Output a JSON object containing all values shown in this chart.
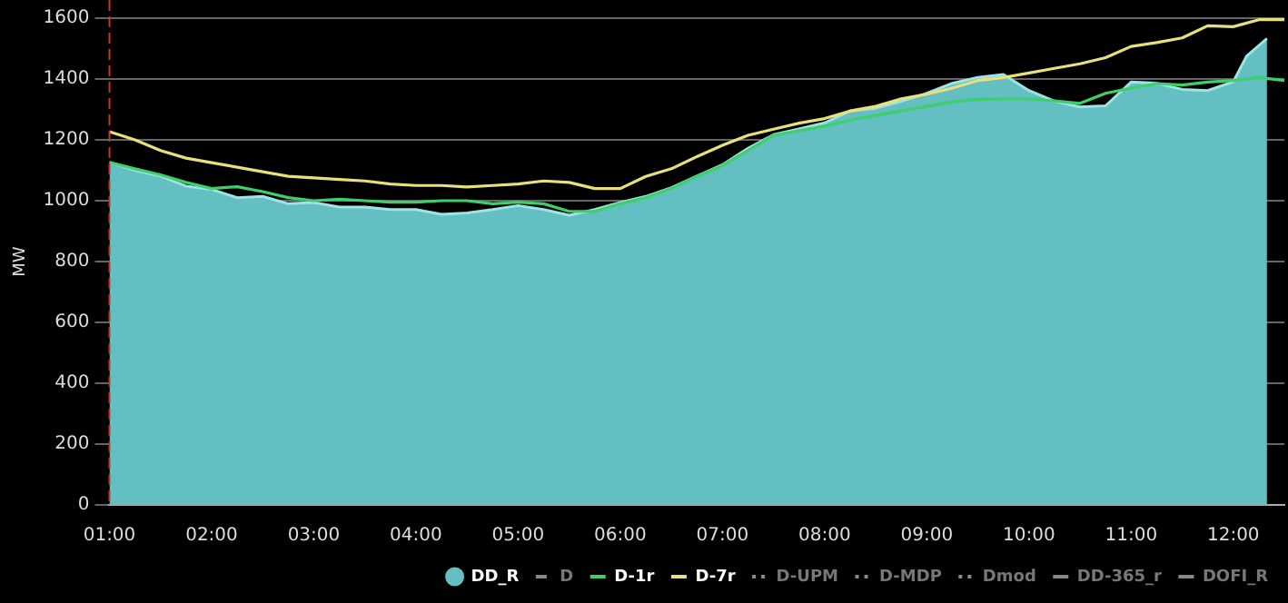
{
  "chart_data": {
    "type": "line",
    "ylabel": "MW",
    "x": [
      1,
      1.25,
      1.5,
      1.75,
      2,
      2.25,
      2.5,
      2.75,
      3,
      3.25,
      3.5,
      3.75,
      4,
      4.25,
      4.5,
      4.75,
      5,
      5.25,
      5.5,
      5.75,
      6,
      6.25,
      6.5,
      6.75,
      7,
      7.25,
      7.5,
      7.75,
      8,
      8.25,
      8.5,
      8.75,
      9,
      9.25,
      9.5,
      9.75,
      10,
      10.25,
      10.5,
      10.75,
      11,
      11.25,
      11.5,
      11.75,
      12,
      12.25,
      12.5
    ],
    "series": [
      {
        "name": "DD_R",
        "type": "area",
        "color": "#63bfc1",
        "x": [
          1,
          1.25,
          1.5,
          1.75,
          2,
          2.25,
          2.5,
          2.75,
          3,
          3.25,
          3.5,
          3.75,
          4,
          4.25,
          4.5,
          4.75,
          5,
          5.25,
          5.5,
          5.75,
          6,
          6.25,
          6.5,
          6.75,
          7,
          7.25,
          7.5,
          7.75,
          8,
          8.25,
          8.5,
          8.75,
          9,
          9.25,
          9.5,
          9.75,
          10,
          10.25,
          10.5,
          10.75,
          11,
          11.25,
          11.5,
          11.75,
          12,
          12.13,
          12.33
        ],
        "values": [
          1126,
          1100,
          1081,
          1048,
          1037,
          1010,
          1014,
          990,
          994,
          979,
          979,
          971,
          971,
          955,
          960,
          971,
          984,
          971,
          952,
          971,
          994,
          1014,
          1043,
          1081,
          1118,
          1172,
          1217,
          1236,
          1256,
          1295,
          1304,
          1327,
          1353,
          1386,
          1405,
          1415,
          1362,
          1327,
          1308,
          1312,
          1390,
          1386,
          1366,
          1362,
          1391,
          1475,
          1533
        ]
      },
      {
        "name": "D",
        "color": "#8a8a8a",
        "line_style": "dashed",
        "values": [
          null,
          null,
          null,
          null,
          null,
          null,
          null,
          null,
          null,
          null,
          null,
          null,
          null,
          null,
          null,
          null,
          null,
          null,
          null,
          null,
          null,
          null,
          null,
          null,
          null,
          null,
          null,
          null,
          null,
          null,
          null,
          null,
          null,
          null,
          null,
          null,
          null,
          null,
          null,
          null,
          null,
          null,
          null,
          null,
          null,
          null,
          null
        ]
      },
      {
        "name": "D-1r",
        "color": "#3ecf6a",
        "values": [
          1126,
          1105,
          1085,
          1060,
          1040,
          1046,
          1030,
          1010,
          1000,
          1005,
          1000,
          995,
          995,
          1000,
          1000,
          990,
          995,
          990,
          965,
          965,
          990,
          1010,
          1040,
          1080,
          1115,
          1165,
          1215,
          1230,
          1245,
          1265,
          1280,
          1295,
          1310,
          1325,
          1333,
          1335,
          1335,
          1328,
          1320,
          1353,
          1370,
          1385,
          1380,
          1390,
          1395,
          1405,
          1395
        ]
      },
      {
        "name": "D-7r",
        "color": "#e8e07a",
        "values": [
          1227,
          1200,
          1165,
          1140,
          1125,
          1110,
          1095,
          1080,
          1075,
          1070,
          1065,
          1055,
          1050,
          1050,
          1045,
          1050,
          1055,
          1065,
          1060,
          1040,
          1040,
          1080,
          1105,
          1145,
          1182,
          1215,
          1235,
          1255,
          1270,
          1295,
          1310,
          1335,
          1350,
          1370,
          1395,
          1405,
          1420,
          1435,
          1450,
          1470,
          1507,
          1520,
          1535,
          1575,
          1572,
          1595,
          1595
        ]
      },
      {
        "name": "D-UPM",
        "color": "#8a8a8a",
        "line_style": "dotted",
        "values": [
          null,
          null,
          null,
          null,
          null,
          null,
          null,
          null,
          null,
          null,
          null,
          null,
          null,
          null,
          null,
          null,
          null,
          null,
          null,
          null,
          null,
          null,
          null,
          null,
          null,
          null,
          null,
          null,
          null,
          null,
          null,
          null,
          null,
          null,
          null,
          null,
          null,
          null,
          null,
          null,
          null,
          null,
          null,
          null,
          null,
          null,
          null
        ]
      },
      {
        "name": "D-MDP",
        "color": "#8a8a8a",
        "line_style": "dotted",
        "values": [
          null,
          null,
          null,
          null,
          null,
          null,
          null,
          null,
          null,
          null,
          null,
          null,
          null,
          null,
          null,
          null,
          null,
          null,
          null,
          null,
          null,
          null,
          null,
          null,
          null,
          null,
          null,
          null,
          null,
          null,
          null,
          null,
          null,
          null,
          null,
          null,
          null,
          null,
          null,
          null,
          null,
          null,
          null,
          null,
          null,
          null,
          null
        ]
      },
      {
        "name": "Dmod",
        "color": "#8a8a8a",
        "line_style": "dotted",
        "values": [
          null,
          null,
          null,
          null,
          null,
          null,
          null,
          null,
          null,
          null,
          null,
          null,
          null,
          null,
          null,
          null,
          null,
          null,
          null,
          null,
          null,
          null,
          null,
          null,
          null,
          null,
          null,
          null,
          null,
          null,
          null,
          null,
          null,
          null,
          null,
          null,
          null,
          null,
          null,
          null,
          null,
          null,
          null,
          null,
          null,
          null,
          null
        ]
      },
      {
        "name": "DD-365_r",
        "color": "#8a8a8a",
        "line_style": "solid",
        "values": [
          null,
          null,
          null,
          null,
          null,
          null,
          null,
          null,
          null,
          null,
          null,
          null,
          null,
          null,
          null,
          null,
          null,
          null,
          null,
          null,
          null,
          null,
          null,
          null,
          null,
          null,
          null,
          null,
          null,
          null,
          null,
          null,
          null,
          null,
          null,
          null,
          null,
          null,
          null,
          null,
          null,
          null,
          null,
          null,
          null,
          null,
          null
        ]
      },
      {
        "name": "DOFI_R",
        "color": "#8a8a8a",
        "line_style": "solid",
        "values": [
          null,
          null,
          null,
          null,
          null,
          null,
          null,
          null,
          null,
          null,
          null,
          null,
          null,
          null,
          null,
          null,
          null,
          null,
          null,
          null,
          null,
          null,
          null,
          null,
          null,
          null,
          null,
          null,
          null,
          null,
          null,
          null,
          null,
          null,
          null,
          null,
          null,
          null,
          null,
          null,
          null,
          null,
          null,
          null,
          null,
          null,
          null
        ]
      }
    ],
    "xlim": [
      1,
      12.5
    ],
    "xticks": [
      {
        "value": 1,
        "label": "01:00"
      },
      {
        "value": 2,
        "label": "02:00"
      },
      {
        "value": 3,
        "label": "03:00"
      },
      {
        "value": 4,
        "label": "04:00"
      },
      {
        "value": 5,
        "label": "05:00"
      },
      {
        "value": 6,
        "label": "06:00"
      },
      {
        "value": 7,
        "label": "07:00"
      },
      {
        "value": 8,
        "label": "08:00"
      },
      {
        "value": 9,
        "label": "09:00"
      },
      {
        "value": 10,
        "label": "10:00"
      },
      {
        "value": 11,
        "label": "11:00"
      },
      {
        "value": 12,
        "label": "12:00"
      }
    ],
    "ylim": [
      0,
      1600
    ],
    "yticks": [
      0,
      200,
      400,
      600,
      800,
      1000,
      1200,
      1400,
      1600
    ],
    "ref_lines": [
      {
        "axis": "x",
        "value": 1,
        "color": "#c0392b",
        "line_style": "dashed"
      }
    ],
    "grid": "y",
    "legend": "bottom right",
    "marker": "none"
  }
}
